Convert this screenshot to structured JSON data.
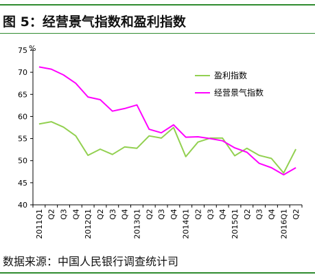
{
  "header": {
    "title": "图 5：经营景气指数和盈利指数"
  },
  "footer": {
    "source": "数据来源：中国人民银行调查统计司"
  },
  "colors": {
    "rule": "#2e8b2e",
    "profit": "#92d050",
    "business": "#ff00ff"
  },
  "chart_data": {
    "type": "line",
    "title": "",
    "xlabel": "",
    "ylabel": "",
    "yunit": "%",
    "ylim": [
      40,
      75
    ],
    "yticks": [
      40,
      45,
      50,
      55,
      60,
      65,
      70,
      75
    ],
    "grid": false,
    "legend": "top-right",
    "categories": [
      "2011Q1",
      "Q2",
      "Q3",
      "Q4",
      "2012Q1",
      "Q2",
      "Q3",
      "Q4",
      "2013Q1",
      "Q2",
      "Q3",
      "Q4",
      "2014Q1",
      "Q2",
      "Q3",
      "Q4",
      "2015Q1",
      "Q2",
      "Q3",
      "Q4",
      "2016Q1",
      "Q2"
    ],
    "series": [
      {
        "name": "盈利指数",
        "color": "#92d050",
        "values": [
          58.3,
          58.8,
          57.6,
          55.6,
          51.2,
          52.6,
          51.4,
          53.1,
          52.8,
          55.6,
          55.1,
          57.5,
          50.9,
          54.2,
          55.1,
          55.1,
          51.1,
          52.8,
          51.2,
          50.5,
          47.2,
          52.6
        ]
      },
      {
        "name": "经营景气指数",
        "color": "#ff00ff",
        "values": [
          71.2,
          70.7,
          69.4,
          67.5,
          64.4,
          63.8,
          61.2,
          61.8,
          62.6,
          57.1,
          56.3,
          58.1,
          55.3,
          55.4,
          55.0,
          54.5,
          52.9,
          51.9,
          49.4,
          48.4,
          46.8,
          48.4
        ]
      }
    ]
  }
}
